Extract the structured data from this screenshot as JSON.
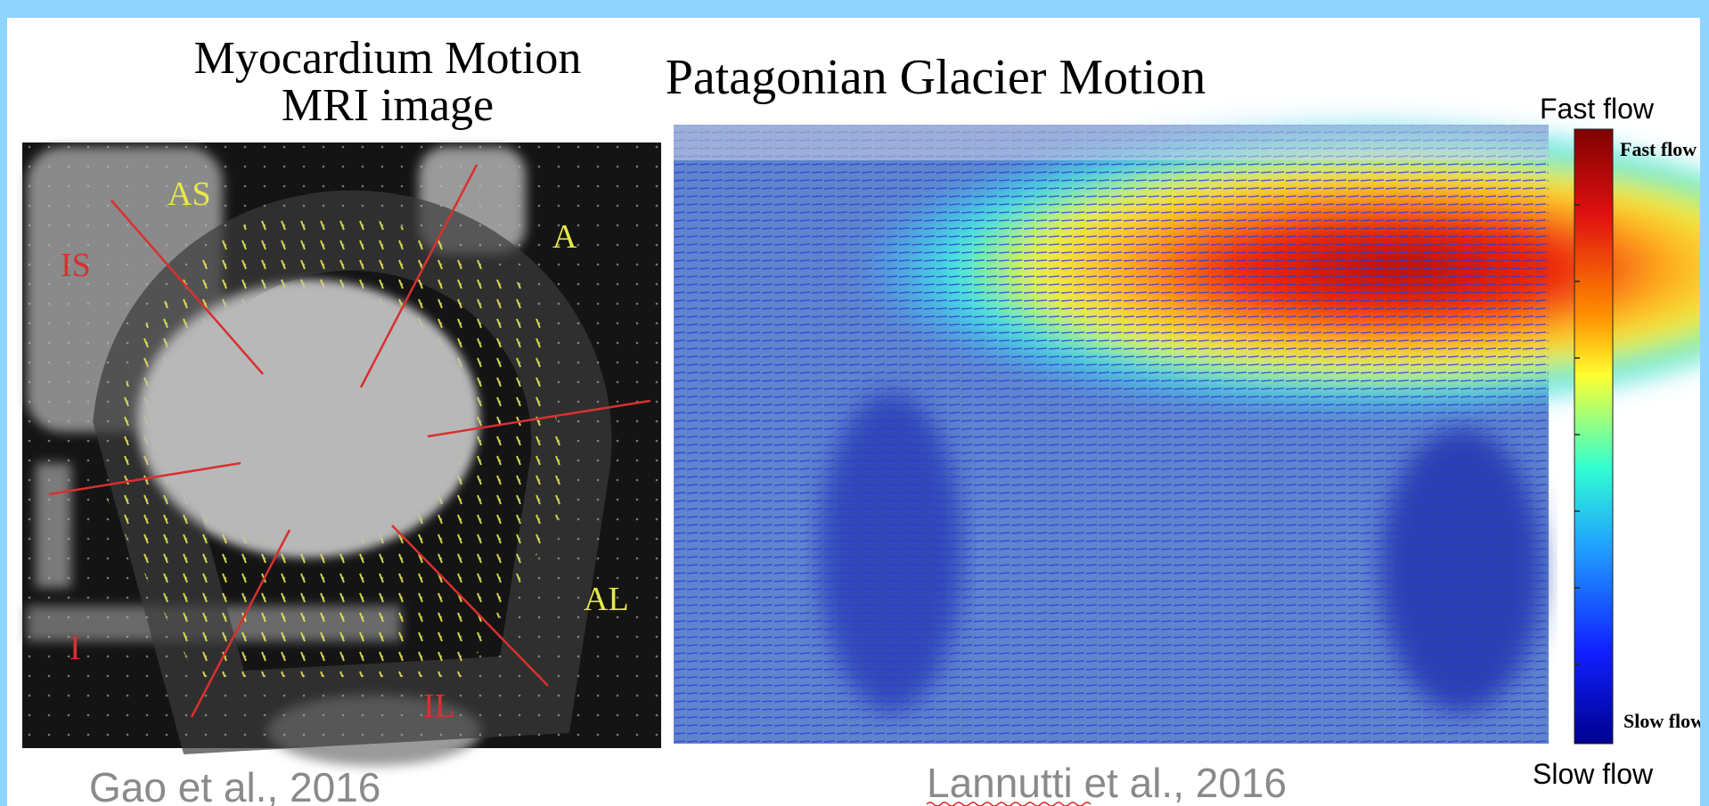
{
  "left_panel": {
    "title_line1": "Myocardium Motion",
    "title_line2": "MRI image",
    "labels": [
      "AS",
      "A",
      "IS",
      "AL",
      "I",
      "IL"
    ],
    "citation": "Gao et al., 2016"
  },
  "right_panel": {
    "title": "Patagonian Glacier Motion",
    "citation": "Lannutti et al., 2016",
    "colorbar": {
      "outer_top": "Fast flow",
      "outer_bottom": "Slow flow",
      "inner_top": "Fast flow",
      "inner_bottom": "Slow flow"
    }
  }
}
